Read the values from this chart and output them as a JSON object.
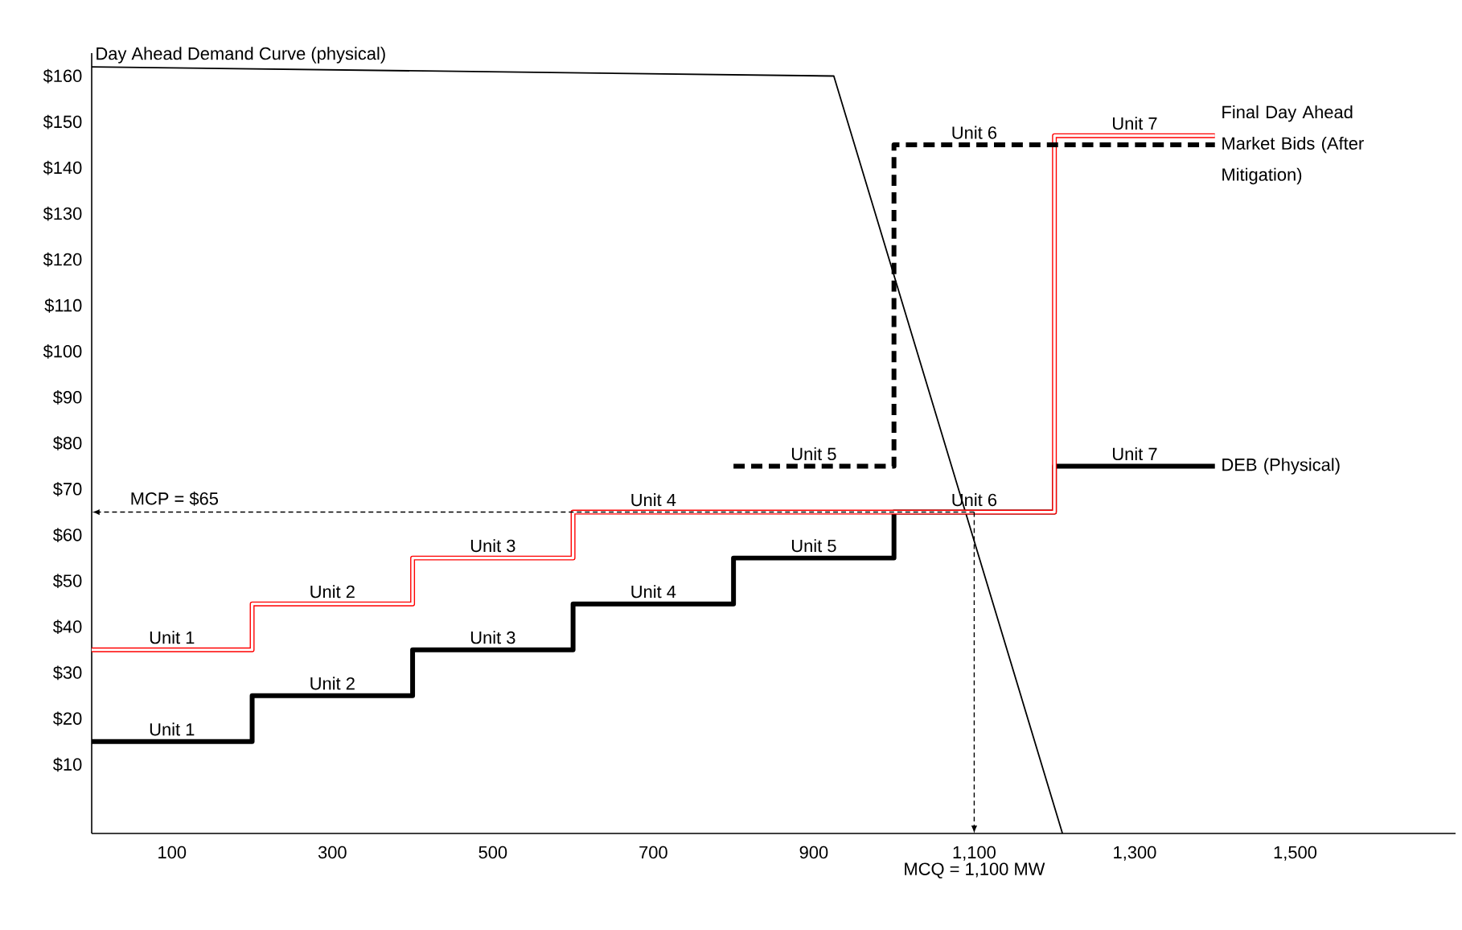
{
  "chart_data": {
    "type": "step",
    "xlim": [
      0,
      1700
    ],
    "ylim": [
      -5,
      165
    ],
    "xticks": [
      100,
      300,
      500,
      700,
      900,
      {
        "value": 1100,
        "label": "1,100"
      },
      {
        "value": 1300,
        "label": "1,300"
      },
      {
        "value": 1500,
        "label": "1,500"
      }
    ],
    "yticks": [
      {
        "value": 10,
        "label": "$10"
      },
      {
        "value": 20,
        "label": "$20"
      },
      {
        "value": 30,
        "label": "$30"
      },
      {
        "value": 40,
        "label": "$40"
      },
      {
        "value": 50,
        "label": "$50"
      },
      {
        "value": 60,
        "label": "$60"
      },
      {
        "value": 70,
        "label": "$70"
      },
      {
        "value": 80,
        "label": "$80"
      },
      {
        "value": 90,
        "label": "$90"
      },
      {
        "value": 100,
        "label": "$100"
      },
      {
        "value": 110,
        "label": "$110"
      },
      {
        "value": 120,
        "label": "$120"
      },
      {
        "value": 130,
        "label": "$130"
      },
      {
        "value": 140,
        "label": "$140"
      },
      {
        "value": 150,
        "label": "$150"
      },
      {
        "value": 160,
        "label": "$160"
      }
    ],
    "grid": false,
    "marker": "none",
    "series": [
      {
        "name": "Day Ahead Demand Curve (physical)",
        "type": "line",
        "color": "#000000",
        "x": [
          0,
          925,
          1210
        ],
        "values": [
          162,
          160,
          -5
        ]
      },
      {
        "name": "DEB (Physical)",
        "color": "#000000",
        "x": [
          0,
          200,
          400,
          600,
          800,
          1000,
          1200,
          1400
        ],
        "values": [
          15,
          25,
          35,
          45,
          55,
          65,
          75,
          75
        ]
      },
      {
        "color": "#ff0000",
        "x": [
          0,
          200,
          400,
          600,
          1200,
          1400
        ],
        "values": [
          35,
          45,
          55,
          65,
          147,
          147
        ]
      },
      {
        "name": "Final Day Ahead Market Bids (After Mitigation)",
        "color": "#000000",
        "line_style": "dashed",
        "x": [
          800,
          1000,
          1400
        ],
        "values": [
          75,
          145,
          145
        ]
      }
    ],
    "ref_lines": [
      {
        "axis": "y",
        "value": 65,
        "label": "MCP = $65"
      },
      {
        "axis": "x",
        "value": 1100,
        "label": "MCQ = 1,100 MW"
      }
    ],
    "annotations": [
      {
        "text": "Unit 1",
        "x": 100,
        "y": 15
      },
      {
        "text": "Unit 2",
        "x": 300,
        "y": 25
      },
      {
        "text": "Unit 3",
        "x": 500,
        "y": 35
      },
      {
        "text": "Unit 4",
        "x": 700,
        "y": 45
      },
      {
        "text": "Unit 5",
        "x": 900,
        "y": 55
      },
      {
        "text": "Unit 6",
        "x": 1100,
        "y": 65
      },
      {
        "text": "Unit 7",
        "x": 1300,
        "y": 75
      },
      {
        "text": "Unit 1",
        "x": 100,
        "y": 35
      },
      {
        "text": "Unit 2",
        "x": 300,
        "y": 45
      },
      {
        "text": "Unit 3",
        "x": 500,
        "y": 55
      },
      {
        "text": "Unit 4",
        "x": 700,
        "y": 65
      },
      {
        "text": "Unit 5",
        "x": 900,
        "y": 75
      },
      {
        "text": "Unit 6",
        "x": 1100,
        "y": 145
      },
      {
        "text": "Unit 7",
        "x": 1300,
        "y": 147
      }
    ]
  }
}
